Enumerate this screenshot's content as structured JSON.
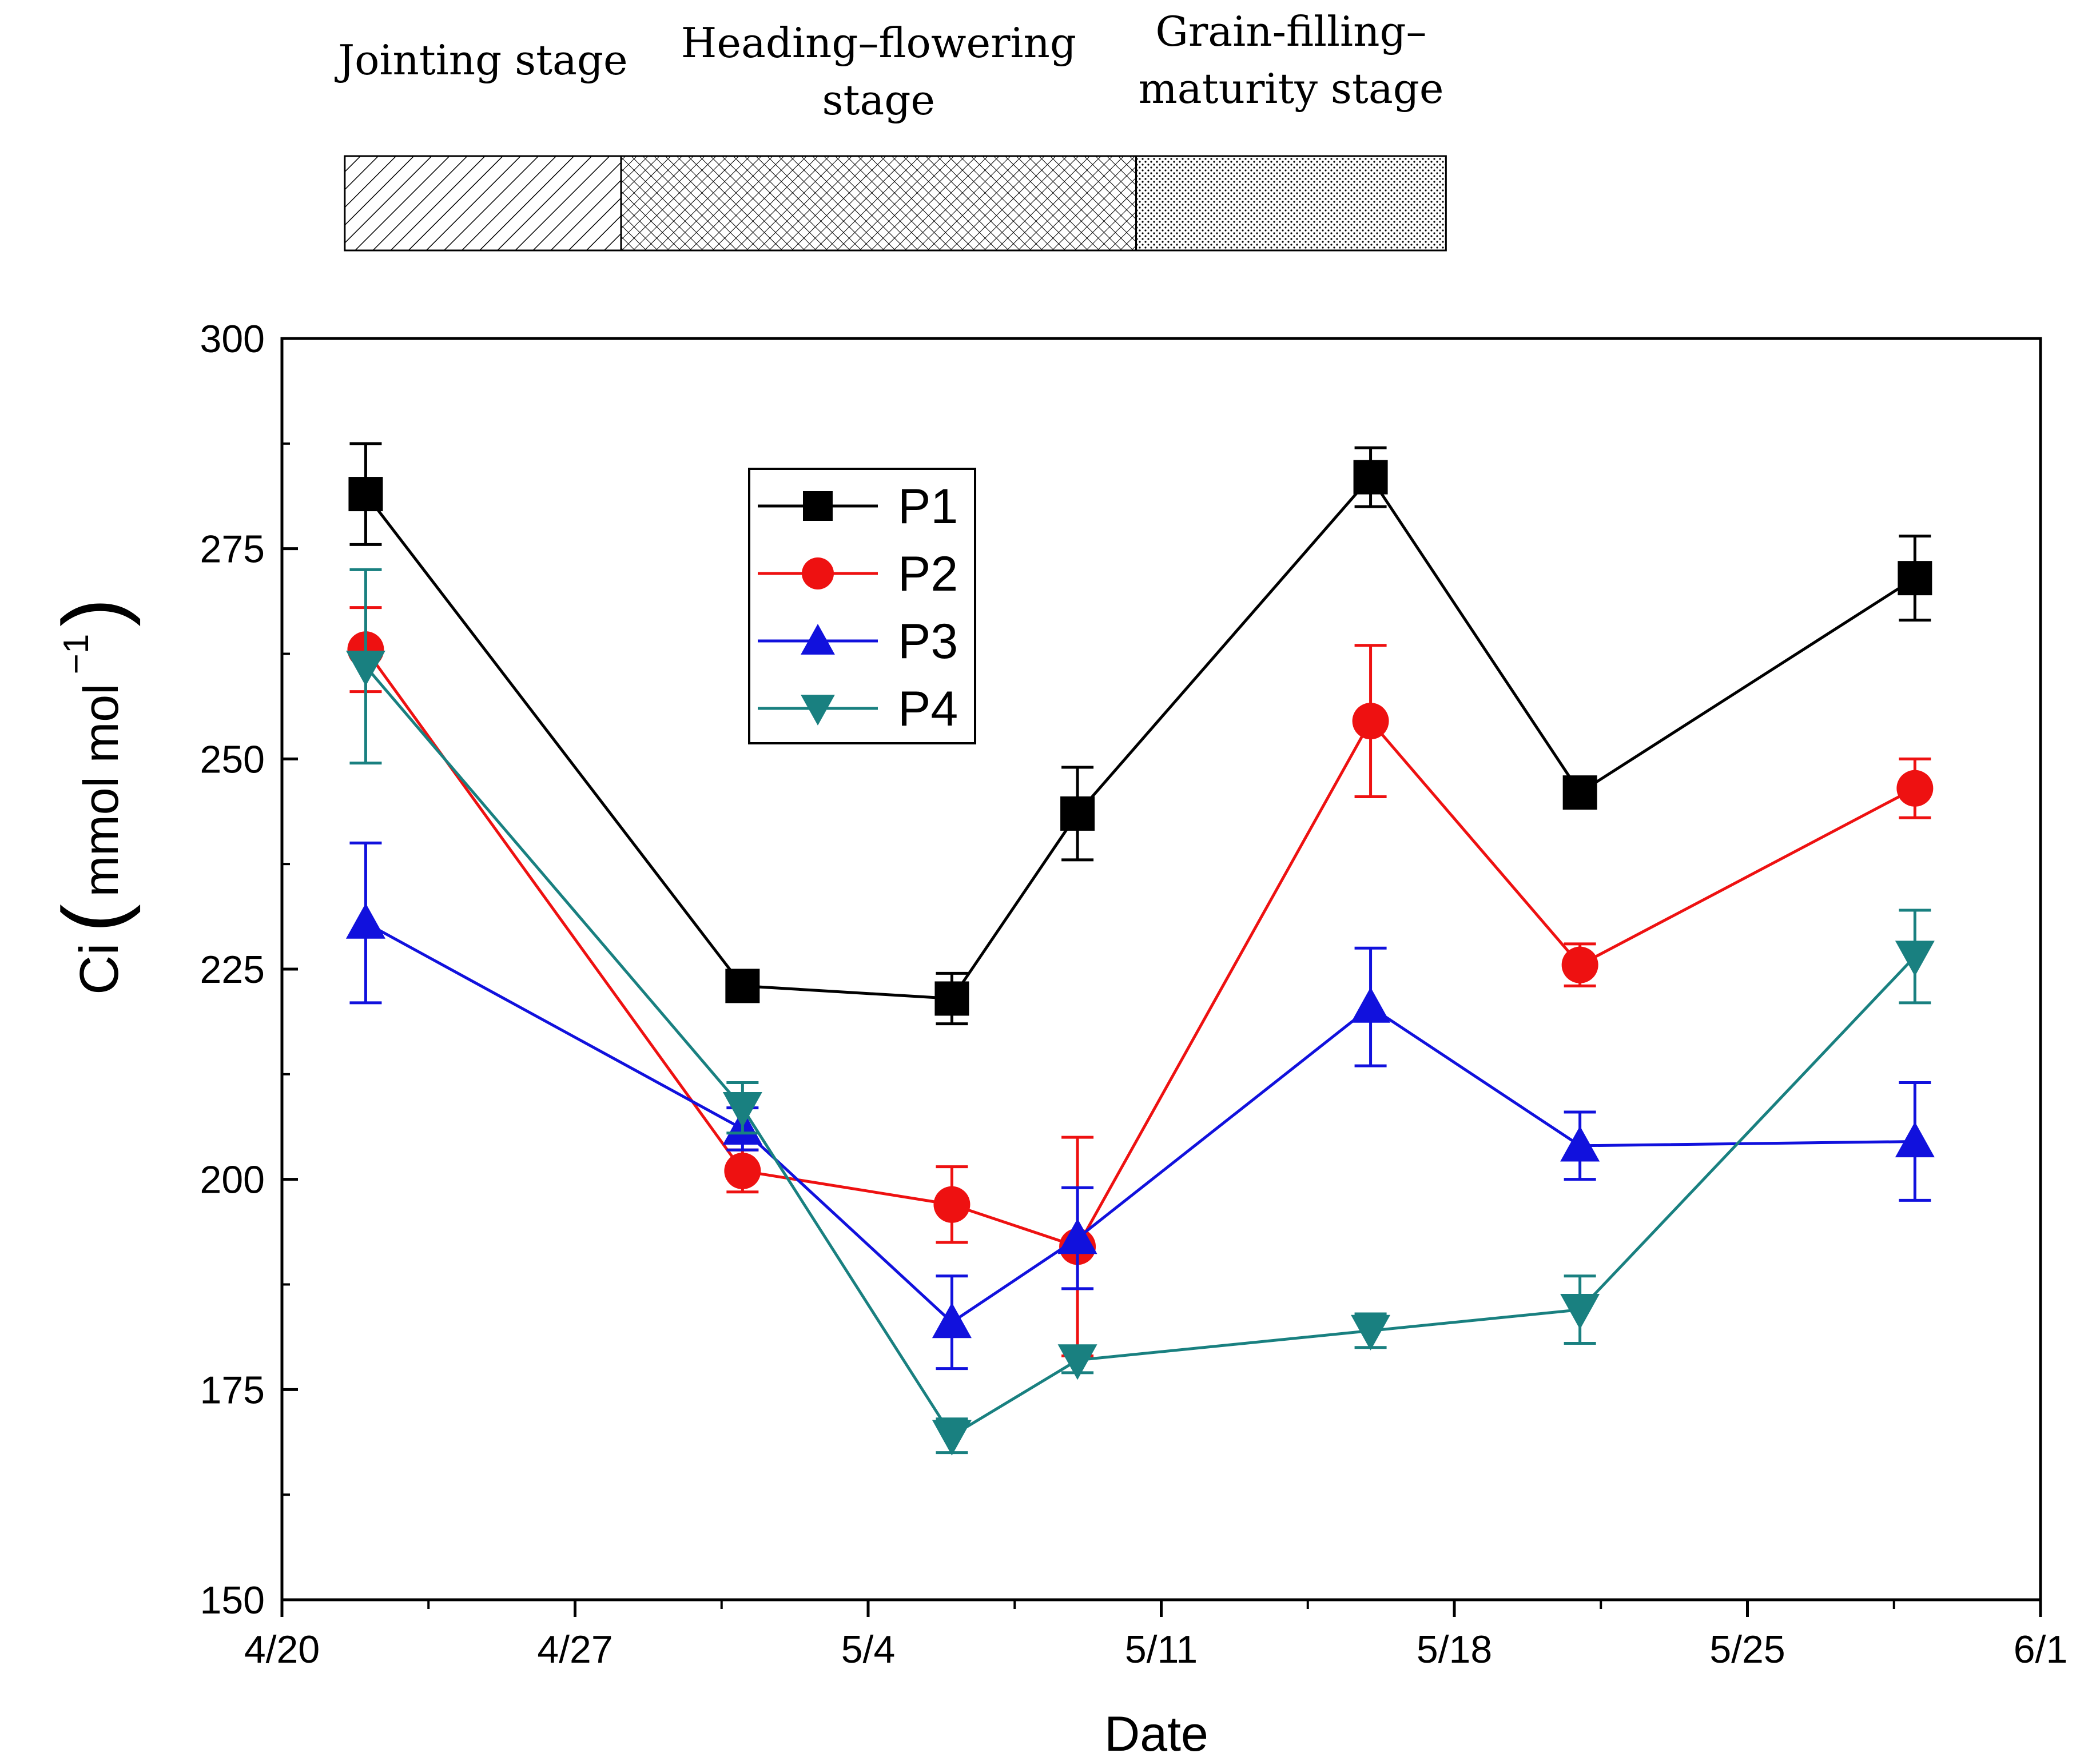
{
  "chart_data": {
    "type": "line",
    "title": "",
    "xlabel": "Date",
    "ylabel_main": "Ci",
    "ylabel_unit": "mmol mol",
    "ylabel_exp": "−1",
    "x_ticks": [
      {
        "day": 0,
        "label": "4/20"
      },
      {
        "day": 7,
        "label": "4/27"
      },
      {
        "day": 14,
        "label": "5/4"
      },
      {
        "day": 21,
        "label": "5/11"
      },
      {
        "day": 28,
        "label": "5/18"
      },
      {
        "day": 35,
        "label": "5/25"
      },
      {
        "day": 42,
        "label": "6/1"
      }
    ],
    "x_range_days": [
      0,
      42
    ],
    "ylim": [
      150,
      300
    ],
    "y_ticks": [
      150,
      175,
      200,
      225,
      250,
      275,
      300
    ],
    "x_days": [
      2,
      11,
      16,
      19,
      26,
      31,
      39
    ],
    "series": [
      {
        "name": "P1",
        "color": "#000000",
        "marker": "square",
        "values": [
          281.5,
          223,
          221.5,
          243.5,
          283.5,
          246,
          271.5
        ],
        "errors": [
          6,
          1.5,
          3,
          5.5,
          3.5,
          1,
          5
        ]
      },
      {
        "name": "P2",
        "color": "#ee1111",
        "marker": "circle",
        "values": [
          263,
          201,
          197,
          192,
          254.5,
          225.5,
          246.5
        ],
        "errors": [
          5,
          2.5,
          4.5,
          13,
          9,
          2.5,
          3.5
        ]
      },
      {
        "name": "P3",
        "color": "#1111dd",
        "marker": "triangle-up",
        "values": [
          230.5,
          206,
          183,
          193,
          220.5,
          204,
          204.5
        ],
        "errors": [
          9.5,
          2.5,
          5.5,
          6,
          7,
          4,
          7
        ]
      },
      {
        "name": "P4",
        "color": "#198080",
        "marker": "triangle-down",
        "values": [
          261,
          208.5,
          169.5,
          178.5,
          182,
          184.5,
          226.5
        ],
        "errors": [
          11.5,
          3,
          2,
          1.5,
          2,
          4,
          5.5
        ]
      }
    ],
    "legend_position": "upper-middle-left",
    "stages": [
      {
        "lines": [
          "Jointing stage"
        ],
        "start_day": 1.5,
        "end_day": 8.1,
        "pattern": "diagonal"
      },
      {
        "lines": [
          "Heading–flowering",
          "stage"
        ],
        "start_day": 8.1,
        "end_day": 20.4,
        "pattern": "crosshatch"
      },
      {
        "lines": [
          "Grain-filling–",
          "maturity stage"
        ],
        "start_day": 20.4,
        "end_day": 27.8,
        "pattern": "dots"
      }
    ]
  }
}
